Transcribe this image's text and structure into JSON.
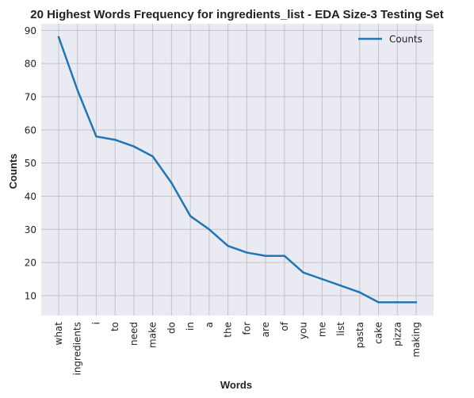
{
  "chart_data": {
    "type": "line",
    "title": "20 Highest Words Frequency for ingredients_list - EDA Size-3 Testing Set",
    "xlabel": "Words",
    "ylabel": "Counts",
    "categories": [
      "what",
      "ingredients",
      "i",
      "to",
      "need",
      "make",
      "do",
      "in",
      "a",
      "the",
      "for",
      "are",
      "of",
      "you",
      "me",
      "list",
      "pasta",
      "cake",
      "pizza",
      "making"
    ],
    "series": [
      {
        "name": "Counts",
        "values": [
          88,
          72,
          58,
          57,
          55,
          52,
          44,
          34,
          30,
          25,
          23,
          22,
          22,
          17,
          15,
          13,
          11,
          8,
          8,
          8
        ],
        "color": "#1f77b4"
      }
    ],
    "yticks": [
      10,
      20,
      30,
      40,
      50,
      60,
      70,
      80,
      90
    ],
    "ylim": [
      4.0,
      92.0
    ],
    "grid": true,
    "legend_position": "top-right",
    "colors": {
      "plot_background": "#eaeaf2",
      "grid": "#c3c3c8"
    }
  }
}
